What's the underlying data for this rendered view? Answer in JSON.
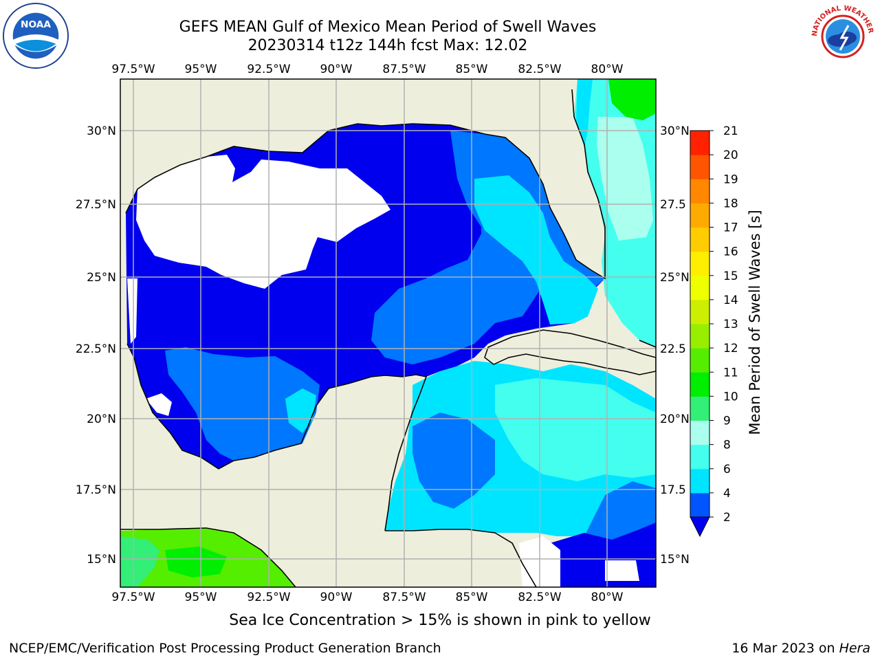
{
  "title": {
    "line1": "GEFS MEAN Gulf of Mexico Mean Period of Swell Waves",
    "line2": "20230314 t12z 144h fcst   Max: 12.02"
  },
  "map": {
    "region": "Gulf of Mexico",
    "lon_labels_top": [
      "97.5°W",
      "95°W",
      "92.5°W",
      "90°W",
      "87.5°W",
      "85°W",
      "82.5°W",
      "80°W"
    ],
    "lon_labels_bottom": [
      "97.5°W",
      "95°W",
      "92.5°W",
      "90°W",
      "87.5°W",
      "85°W",
      "82.5°W",
      "80°W"
    ],
    "lat_labels_left": [
      "30°N",
      "27.5°N",
      "25°N",
      "22.5°N",
      "20°N",
      "17.5°N",
      "15°N"
    ],
    "lat_labels_right": [
      "30°N",
      "27.5",
      "25°N",
      "22.5",
      "20°N",
      "17.5",
      "15°N"
    ],
    "land_color": "#eeeedd",
    "missing_color": "#ffffff"
  },
  "colorbar": {
    "label": "Mean Period of Swell Waves [s]",
    "ticks": [
      "2",
      "4",
      "6",
      "8",
      "9",
      "10",
      "11",
      "12",
      "13",
      "14",
      "15",
      "16",
      "17",
      "18",
      "19",
      "20",
      "21"
    ],
    "colors": [
      "#0055ff",
      "#00e5ff",
      "#44ffee",
      "#aaffee",
      "#33ee77",
      "#00ee00",
      "#55ee00",
      "#99ee00",
      "#ccee00",
      "#eeff00",
      "#ffee00",
      "#ffcc00",
      "#ffaa00",
      "#ff8800",
      "#ff5500",
      "#ff2200"
    ],
    "under_color": "#0000ee"
  },
  "footer": {
    "ice_note": "Sea Ice Concentration > 15% is shown in pink to yellow",
    "credit": "NCEP/EMC/Verification Post Processing Product Generation Branch",
    "date": "16 Mar 2023 on",
    "machine": "Hera"
  },
  "logos": {
    "left": "NOAA",
    "right": "NATIONAL WEATHER SERVICE"
  }
}
